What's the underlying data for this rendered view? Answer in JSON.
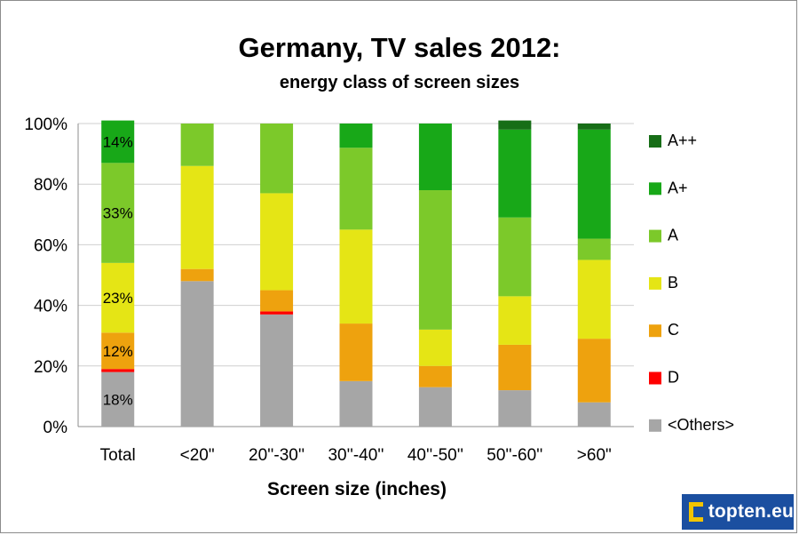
{
  "chart_data": {
    "type": "bar",
    "stacked": true,
    "title": "Germany, TV sales 2012:",
    "subtitle": "energy class of screen sizes",
    "xlabel": "Screen size (inches)",
    "ylabel": "",
    "ylim": [
      0,
      100
    ],
    "yticks": [
      "0%",
      "20%",
      "40%",
      "60%",
      "80%",
      "100%"
    ],
    "ytick_values": [
      0,
      20,
      40,
      60,
      80,
      100
    ],
    "grid": true,
    "legend_position": "right",
    "categories": [
      "Total",
      "<20\"",
      "20''-30''",
      "30''-40''",
      "40''-50''",
      "50''-60''",
      ">60\""
    ],
    "series": [
      {
        "name": "<Others>",
        "color": "#a6a6a6",
        "values": [
          18,
          48,
          37,
          15,
          13,
          12,
          8
        ]
      },
      {
        "name": "D",
        "color": "#ff0000",
        "values": [
          1,
          0,
          1,
          0,
          0,
          0,
          0
        ]
      },
      {
        "name": "C",
        "color": "#eea20e",
        "values": [
          12,
          4,
          7,
          19,
          7,
          15,
          21
        ]
      },
      {
        "name": "B",
        "color": "#e5e515",
        "values": [
          23,
          34,
          32,
          31,
          12,
          16,
          26
        ]
      },
      {
        "name": "A",
        "color": "#7cc92a",
        "values": [
          33,
          14,
          23,
          27,
          46,
          26,
          7
        ]
      },
      {
        "name": "A+",
        "color": "#18a818",
        "values": [
          14,
          0,
          0,
          8,
          22,
          29,
          36
        ]
      },
      {
        "name": "A++",
        "color": "#176e17",
        "values": [
          0,
          0,
          0,
          0,
          0,
          3,
          2
        ]
      }
    ],
    "data_labels": [
      {
        "category": "Total",
        "series": "<Others>",
        "text": "18%"
      },
      {
        "category": "Total",
        "series": "C",
        "text": "12%"
      },
      {
        "category": "Total",
        "series": "B",
        "text": "23%"
      },
      {
        "category": "Total",
        "series": "A",
        "text": "33%"
      },
      {
        "category": "Total",
        "series": "A+",
        "text": "14%"
      }
    ]
  },
  "branding": {
    "logo_text": "topten.eu"
  }
}
